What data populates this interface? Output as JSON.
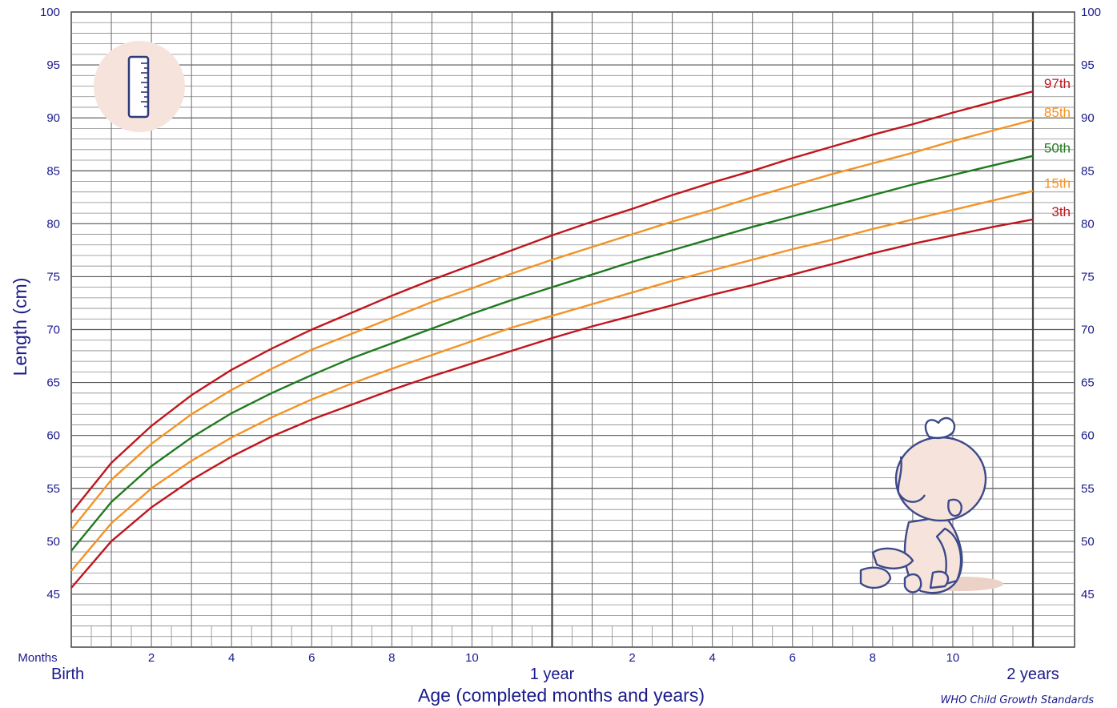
{
  "chart_data": {
    "type": "line",
    "title": "",
    "xlabel": "Age (completed months and years)",
    "ylabel": "Length (cm)",
    "source": "WHO Child Growth Standards",
    "xlim": [
      0,
      24
    ],
    "ylim": [
      40,
      100
    ],
    "grid": true,
    "y_ticks": [
      45,
      50,
      55,
      60,
      65,
      70,
      75,
      80,
      85,
      90,
      95,
      100
    ],
    "x_axis_prefix": "Months",
    "x_month_ticks": [
      {
        "x": 2,
        "label": "2"
      },
      {
        "x": 4,
        "label": "4"
      },
      {
        "x": 6,
        "label": "6"
      },
      {
        "x": 8,
        "label": "8"
      },
      {
        "x": 10,
        "label": "10"
      },
      {
        "x": 14,
        "label": "2"
      },
      {
        "x": 16,
        "label": "4"
      },
      {
        "x": 18,
        "label": "6"
      },
      {
        "x": 20,
        "label": "8"
      },
      {
        "x": 22,
        "label": "10"
      }
    ],
    "x_year_ticks": [
      {
        "x": 0,
        "label": "Birth"
      },
      {
        "x": 12,
        "label": "1 year"
      },
      {
        "x": 24,
        "label": "2 years"
      }
    ],
    "x": [
      0,
      1,
      2,
      3,
      4,
      5,
      6,
      7,
      8,
      9,
      10,
      11,
      12,
      13,
      14,
      15,
      16,
      17,
      18,
      19,
      20,
      21,
      22,
      23,
      24
    ],
    "series": [
      {
        "name": "97th",
        "color": "#c0161e",
        "values": [
          52.7,
          57.4,
          60.9,
          63.8,
          66.2,
          68.2,
          70.0,
          71.6,
          73.2,
          74.7,
          76.1,
          77.5,
          78.9,
          80.2,
          81.4,
          82.7,
          83.9,
          85.0,
          86.2,
          87.3,
          88.4,
          89.4,
          90.5,
          91.5,
          92.5
        ]
      },
      {
        "name": "85th",
        "color": "#f39325",
        "values": [
          51.1,
          55.8,
          59.2,
          62.0,
          64.3,
          66.3,
          68.1,
          69.6,
          71.1,
          72.6,
          73.9,
          75.3,
          76.6,
          77.8,
          79.0,
          80.2,
          81.3,
          82.5,
          83.6,
          84.7,
          85.7,
          86.7,
          87.8,
          88.8,
          89.8
        ]
      },
      {
        "name": "50th",
        "color": "#1f7a1f",
        "values": [
          49.1,
          53.7,
          57.1,
          59.8,
          62.1,
          64.0,
          65.7,
          67.3,
          68.7,
          70.1,
          71.5,
          72.8,
          74.0,
          75.2,
          76.4,
          77.5,
          78.6,
          79.7,
          80.7,
          81.7,
          82.7,
          83.7,
          84.6,
          85.5,
          86.4
        ]
      },
      {
        "name": "15th",
        "color": "#f39325",
        "values": [
          47.2,
          51.7,
          55.0,
          57.6,
          59.8,
          61.7,
          63.4,
          64.9,
          66.3,
          67.6,
          68.9,
          70.2,
          71.3,
          72.4,
          73.5,
          74.6,
          75.6,
          76.6,
          77.6,
          78.5,
          79.5,
          80.4,
          81.3,
          82.2,
          83.1
        ]
      },
      {
        "name": "3th",
        "color": "#c0161e",
        "values": [
          45.6,
          50.0,
          53.2,
          55.8,
          58.0,
          59.9,
          61.5,
          62.9,
          64.3,
          65.6,
          66.8,
          68.0,
          69.2,
          70.3,
          71.3,
          72.3,
          73.3,
          74.2,
          75.2,
          76.2,
          77.2,
          78.1,
          78.9,
          79.7,
          80.4
        ]
      }
    ],
    "icons": {
      "ruler": "ruler-icon",
      "baby": "baby-girl-illustration"
    },
    "colors": {
      "text": "#1a1a8c",
      "grid": "#5a5a5a",
      "decor_fill": "#f6e4dc"
    }
  }
}
